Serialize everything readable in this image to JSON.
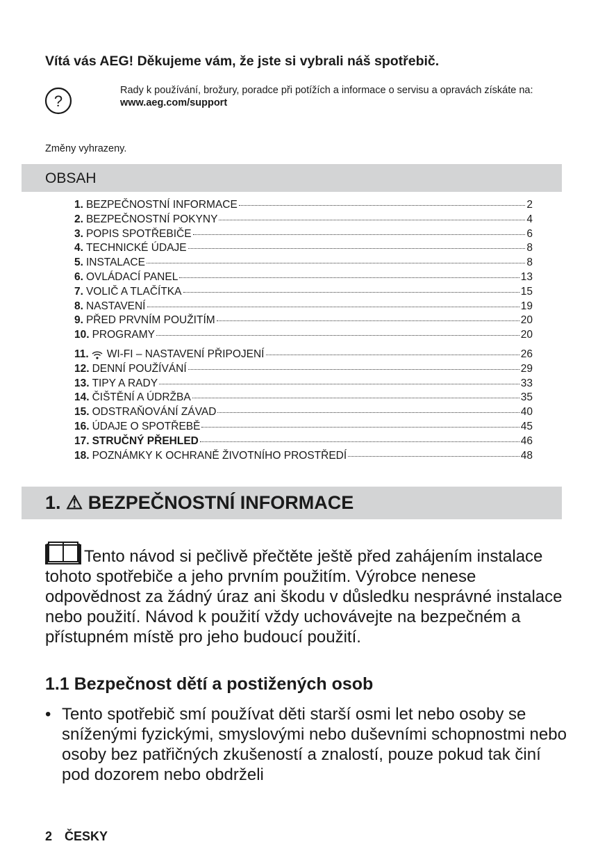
{
  "welcome": "Vítá vás AEG! Děkujeme vám, že jste si vybrali náš spotřebič.",
  "help": {
    "icon": "question-circle-icon",
    "text": "Rady k používání, brožury, poradce při potížích a informace o servisu a opravách získáte na:",
    "url": "www.aeg.com/support"
  },
  "changes": "Změny vyhrazeny.",
  "toc": {
    "title": "OBSAH",
    "items": [
      {
        "num": "1.",
        "title": "BEZPEČNOSTNÍ INFORMACE",
        "page": "2"
      },
      {
        "num": "2.",
        "title": "BEZPEČNOSTNÍ POKYNY",
        "page": "4"
      },
      {
        "num": "3.",
        "title": "POPIS SPOTŘEBIČE",
        "page": "6"
      },
      {
        "num": "4.",
        "title": "TECHNICKÉ ÚDAJE",
        "page": "8"
      },
      {
        "num": "5.",
        "title": "INSTALACE",
        "page": "8"
      },
      {
        "num": "6.",
        "title": "OVLÁDACÍ PANEL",
        "page": "13"
      },
      {
        "num": "7.",
        "title": "VOLIČ A TLAČÍTKA",
        "page": "15"
      },
      {
        "num": "8.",
        "title": "NASTAVENÍ",
        "page": "19"
      },
      {
        "num": "9.",
        "title": "PŘED PRVNÍM POUŽITÍM",
        "page": "20"
      },
      {
        "num": "10.",
        "title": "PROGRAMY",
        "page": "20"
      },
      {
        "num": "11.",
        "title": "WI-FI – NASTAVENÍ PŘIPOJENÍ",
        "page": "26",
        "icon": "wifi-icon"
      },
      {
        "num": "12.",
        "title": "DENNÍ POUŽÍVÁNÍ",
        "page": "29"
      },
      {
        "num": "13.",
        "title": "TIPY A RADY",
        "page": "33"
      },
      {
        "num": "14.",
        "title": "ČIŠTĚNÍ A ÚDRŽBA",
        "page": "35"
      },
      {
        "num": "15.",
        "title": "ODSTRAŇOVÁNÍ ZÁVAD",
        "page": "40"
      },
      {
        "num": "16.",
        "title": "ÚDAJE O SPOTŘEBĚ",
        "page": "45"
      },
      {
        "num": "17.",
        "title": "STRUČNÝ PŘEHLED",
        "page": "46",
        "bold": true
      },
      {
        "num": "18.",
        "title": "POZNÁMKY K OCHRANĚ ŽIVOTNÍHO PROSTŘEDÍ",
        "page": "48"
      }
    ]
  },
  "section1": {
    "title": "1. ⚠ BEZPEČNOSTNÍ INFORMACE",
    "icon": "book-icon",
    "intro": "Tento návod si pečlivě přečtěte ještě před zahájením instalace tohoto spotřebiče a jeho prvním použitím. Výrobce nenese odpovědnost za žádný úraz ani škodu v důsledku nesprávné instalace nebo použití. Návod k použití vždy uchovávejte na bezpečném a přístupném místě pro jeho budoucí použití.",
    "subsection": "1.1 Bezpečnost dětí a postižených osob",
    "bullets": [
      "Tento spotřebič smí používat děti starší osmi let nebo osoby se sníženými fyzickými, smyslovými nebo duševními schopnostmi nebo osoby bez patřičných zkušeností a znalostí, pouze pokud tak činí pod dozorem nebo obdrželi"
    ]
  },
  "footer": {
    "page": "2",
    "language": "ČESKY"
  }
}
